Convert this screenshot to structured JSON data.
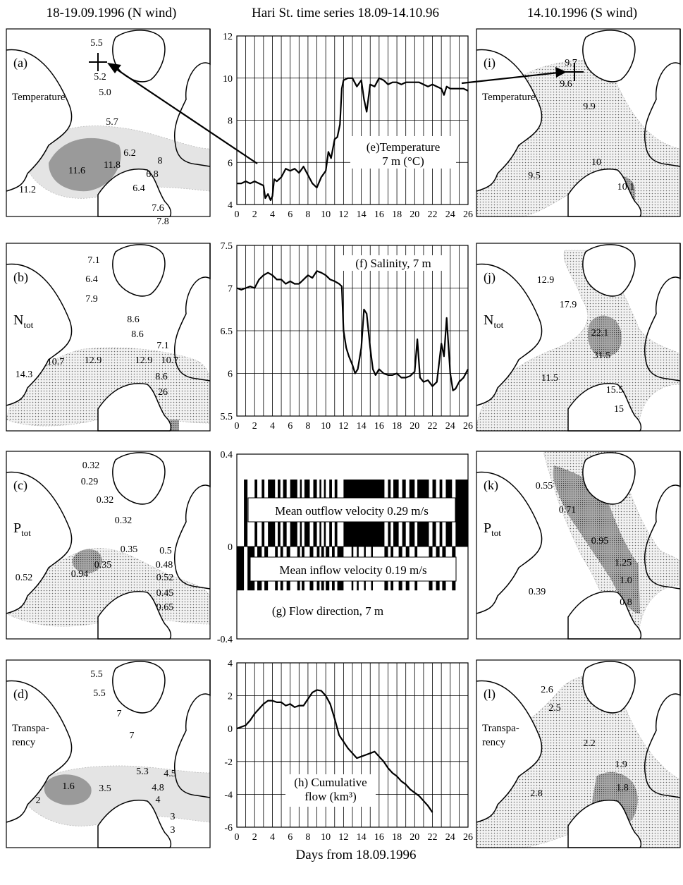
{
  "headers": {
    "left": "18-19.09.1996 (N wind)",
    "center": "Hari St. time series 18.09-14.10.96",
    "right": "14.10.1996 (S wind)"
  },
  "x_axis_label": "Days from 18.09.1996",
  "colors": {
    "light_fill": "#e4e4e4",
    "dark_fill": "#9a9a9a",
    "line": "#000000"
  },
  "maps": {
    "left": [
      {
        "letter": "(a)",
        "title": "Temperature",
        "subscript": "",
        "title_style": "small",
        "labels": [
          "5.5",
          "5.2",
          "5.0",
          "5.7",
          "6.2",
          "8",
          "6.8",
          "6.4",
          "11.8",
          "11.6",
          "11.2",
          "7.6",
          "7.8"
        ]
      },
      {
        "letter": "(b)",
        "title": "N",
        "subscript": "tot",
        "title_style": "sub",
        "labels": [
          "7.1",
          "6.4",
          "7.9",
          "8.6",
          "8.6",
          "7.1",
          "10.7",
          "12.9",
          "10.7",
          "12.9",
          "14.3",
          "8.6",
          "26"
        ]
      },
      {
        "letter": "(c)",
        "title": "P",
        "subscript": "tot",
        "title_style": "sub",
        "labels": [
          "0.32",
          "0.29",
          "0.32",
          "0.32",
          "0.35",
          "0.5",
          "0.48",
          "0.52",
          "0.35",
          "0.94",
          "0.52",
          "0.45",
          "0.65"
        ]
      },
      {
        "letter": "(d)",
        "title": "Transpa-\nrency",
        "subscript": "",
        "title_style": "small",
        "labels": [
          "5.5",
          "5.5",
          "7",
          "7",
          "5.3",
          "4.5",
          "4.8",
          "4",
          "3.5",
          "1.6",
          "2",
          "3",
          "3"
        ]
      }
    ],
    "right": [
      {
        "letter": "(i)",
        "title": "Temperature",
        "subscript": "",
        "title_style": "small",
        "labels": [
          "9.7",
          "9.6",
          "9.9",
          "10",
          "9.5",
          "10.1"
        ]
      },
      {
        "letter": "(j)",
        "title": "N",
        "subscript": "tot",
        "title_style": "sub",
        "labels": [
          "12.9",
          "17.9",
          "22.1",
          "31.5",
          "11.5",
          "15.5",
          "15"
        ]
      },
      {
        "letter": "(k)",
        "title": "P",
        "subscript": "tot",
        "title_style": "sub",
        "labels": [
          "0.55",
          "0.71",
          "0.95",
          "1.25",
          "1.0",
          "0.8",
          "0.39"
        ]
      },
      {
        "letter": "(l)",
        "title": "Transpa-\nrency",
        "subscript": "",
        "title_style": "small",
        "labels": [
          "2.6",
          "2.5",
          "2.2",
          "1.9",
          "1.8",
          "2.8"
        ]
      }
    ]
  },
  "chart_data": [
    {
      "id": "e",
      "type": "line",
      "title": "(e)Temperature\n7 m (°C)",
      "ylim": [
        4,
        12
      ],
      "yticks": [
        "4",
        "6",
        "8",
        "10",
        "12"
      ],
      "xticks": [],
      "series": [
        {
          "x": [
            0,
            0.5,
            1,
            1.5,
            2,
            2.5,
            3,
            3.2,
            3.5,
            3.8,
            4,
            4.2,
            4.5,
            5,
            5.5,
            6,
            6.5,
            7,
            7.5,
            8,
            8.5,
            9,
            9.5,
            10,
            10.3,
            10.6,
            11,
            11.3,
            11.6,
            11.8,
            12,
            12.5,
            13,
            13.5,
            14,
            14.3,
            14.6,
            15,
            15.5,
            16,
            16.5,
            17,
            17.5,
            18,
            18.5,
            19,
            19.5,
            20,
            20.5,
            21,
            21.5,
            22,
            22.5,
            23,
            23.3,
            23.6,
            24,
            24.5,
            25,
            25.5,
            26
          ],
          "y": [
            5.0,
            5.0,
            5.1,
            5.0,
            5.1,
            5.0,
            4.9,
            4.3,
            4.5,
            4.2,
            4.4,
            5.2,
            5.1,
            5.3,
            5.7,
            5.6,
            5.7,
            5.5,
            5.8,
            5.4,
            5.0,
            4.8,
            5.3,
            5.6,
            6.5,
            6.2,
            7.1,
            7.2,
            7.8,
            9.5,
            9.9,
            10.0,
            10.0,
            9.6,
            9.9,
            9.0,
            8.4,
            9.7,
            9.6,
            10.0,
            9.9,
            9.7,
            9.8,
            9.8,
            9.7,
            9.8,
            9.8,
            9.8,
            9.8,
            9.7,
            9.6,
            9.7,
            9.6,
            9.5,
            9.2,
            9.6,
            9.5,
            9.5,
            9.5,
            9.5,
            9.4
          ]
        }
      ]
    },
    {
      "id": "f",
      "type": "line",
      "title": "(f) Salinity, 7 m",
      "ylim": [
        5.5,
        7.5
      ],
      "yticks": [
        "5.5",
        "6",
        "6.5",
        "7",
        "7.5"
      ],
      "xticks": [
        "0",
        "2",
        "4",
        "6",
        "8",
        "10",
        "12",
        "14",
        "16",
        "18",
        "20",
        "22",
        "24",
        "26"
      ],
      "series": [
        {
          "x": [
            0,
            0.5,
            1,
            1.5,
            2,
            2.5,
            3,
            3.5,
            4,
            4.5,
            5,
            5.5,
            6,
            6.5,
            7,
            7.5,
            8,
            8.5,
            9,
            9.5,
            10,
            10.5,
            11,
            11.5,
            11.8,
            12,
            12.3,
            12.6,
            13,
            13.3,
            13.6,
            14,
            14.3,
            14.6,
            15,
            15.3,
            15.6,
            16,
            16.5,
            17,
            17.5,
            18,
            18.5,
            19,
            19.5,
            20,
            20.3,
            20.6,
            21,
            21.5,
            22,
            22.5,
            23,
            23.3,
            23.6,
            24,
            24.3,
            24.6,
            25,
            25.5,
            26
          ],
          "y": [
            7.0,
            6.98,
            7.0,
            7.02,
            7.0,
            7.1,
            7.15,
            7.18,
            7.15,
            7.1,
            7.1,
            7.05,
            7.08,
            7.05,
            7.05,
            7.1,
            7.15,
            7.12,
            7.2,
            7.18,
            7.15,
            7.1,
            7.08,
            7.05,
            7.02,
            6.5,
            6.3,
            6.2,
            6.1,
            6.0,
            6.05,
            6.3,
            6.75,
            6.7,
            6.3,
            6.05,
            5.98,
            6.05,
            6.0,
            5.98,
            5.98,
            6.0,
            5.95,
            5.95,
            5.97,
            6.02,
            6.4,
            5.95,
            5.9,
            5.92,
            5.85,
            5.9,
            6.35,
            6.2,
            6.65,
            6.0,
            5.8,
            5.82,
            5.9,
            5.95,
            6.05
          ]
        }
      ]
    },
    {
      "id": "g",
      "type": "bar",
      "title": "(g) Flow direction, 7 m",
      "ylim": [
        -0.4,
        0.4
      ],
      "yticks": [
        "-0.4",
        "0",
        "0.4"
      ],
      "xticks": [],
      "annotations": [
        "Mean outflow velocity 0.29 m/s",
        "Mean inflow velocity 0.19 m/s"
      ],
      "outflow_value": 0.29,
      "inflow_value": -0.19,
      "outflow_intervals": [
        [
          0.8,
          1.2
        ],
        [
          2.0,
          2.3
        ],
        [
          2.8,
          3.1
        ],
        [
          3.5,
          4.3
        ],
        [
          4.6,
          4.9
        ],
        [
          5.2,
          5.6
        ],
        [
          6.0,
          6.8
        ],
        [
          7.1,
          7.3
        ],
        [
          7.6,
          8.2
        ],
        [
          8.6,
          9.0
        ],
        [
          9.3,
          9.5
        ],
        [
          9.8,
          10.0
        ],
        [
          10.4,
          10.7
        ],
        [
          11.0,
          11.3
        ],
        [
          12.0,
          16.6
        ],
        [
          17.0,
          17.3
        ],
        [
          17.6,
          18.2
        ],
        [
          18.6,
          19.0
        ],
        [
          19.4,
          20.0
        ],
        [
          20.3,
          21.6
        ],
        [
          22.0,
          22.4
        ],
        [
          22.8,
          23.1
        ],
        [
          23.5,
          24.2
        ],
        [
          24.6,
          26.0
        ]
      ],
      "inflow_intervals": [
        [
          0.0,
          0.8
        ],
        [
          1.2,
          2.0
        ],
        [
          2.3,
          2.8
        ],
        [
          3.1,
          3.5
        ],
        [
          4.3,
          4.6
        ],
        [
          4.9,
          5.2
        ],
        [
          5.6,
          6.0
        ],
        [
          6.8,
          7.1
        ],
        [
          7.3,
          7.6
        ],
        [
          8.2,
          8.6
        ],
        [
          9.0,
          9.3
        ],
        [
          9.5,
          9.8
        ],
        [
          10.0,
          10.4
        ],
        [
          10.7,
          11.0
        ],
        [
          11.3,
          12.0
        ],
        [
          12.9,
          13.1
        ],
        [
          13.5,
          13.7
        ],
        [
          14.3,
          14.5
        ],
        [
          15.1,
          15.3
        ],
        [
          16.6,
          17.0
        ],
        [
          17.3,
          17.6
        ],
        [
          18.2,
          18.6
        ],
        [
          19.0,
          19.4
        ],
        [
          20.0,
          20.3
        ],
        [
          21.6,
          22.0
        ],
        [
          22.4,
          22.8
        ],
        [
          23.1,
          23.5
        ],
        [
          24.2,
          24.6
        ]
      ]
    },
    {
      "id": "h",
      "type": "line",
      "title": "(h) Cumulative\nflow (km³)",
      "ylim": [
        -6,
        4
      ],
      "yticks": [
        "-6",
        "-4",
        "-2",
        "0",
        "2",
        "4"
      ],
      "xticks": [
        "0",
        "2",
        "4",
        "6",
        "8",
        "10",
        "12",
        "14",
        "16",
        "18",
        "20",
        "22",
        "24",
        "26"
      ],
      "series": [
        {
          "x": [
            0,
            0.5,
            1,
            1.5,
            2,
            2.5,
            3,
            3.5,
            4,
            4.5,
            5,
            5.5,
            6,
            6.5,
            7,
            7.5,
            8,
            8.5,
            9,
            9.5,
            10,
            10.5,
            11,
            11.5,
            12,
            12.5,
            13,
            13.5,
            14,
            14.5,
            15,
            15.5,
            16,
            16.5,
            17,
            17.5,
            18,
            18.5,
            19,
            19.5,
            20,
            20.5,
            21,
            21.5,
            22
          ],
          "y": [
            0.0,
            0.1,
            0.2,
            0.5,
            0.9,
            1.2,
            1.5,
            1.7,
            1.7,
            1.6,
            1.6,
            1.4,
            1.5,
            1.3,
            1.4,
            1.4,
            1.8,
            2.2,
            2.35,
            2.3,
            2.0,
            1.5,
            0.6,
            -0.4,
            -0.8,
            -1.2,
            -1.5,
            -1.8,
            -1.7,
            -1.6,
            -1.5,
            -1.4,
            -1.7,
            -2.0,
            -2.4,
            -2.7,
            -2.9,
            -3.2,
            -3.4,
            -3.7,
            -3.9,
            -4.1,
            -4.4,
            -4.7,
            -5.1
          ]
        }
      ]
    }
  ]
}
